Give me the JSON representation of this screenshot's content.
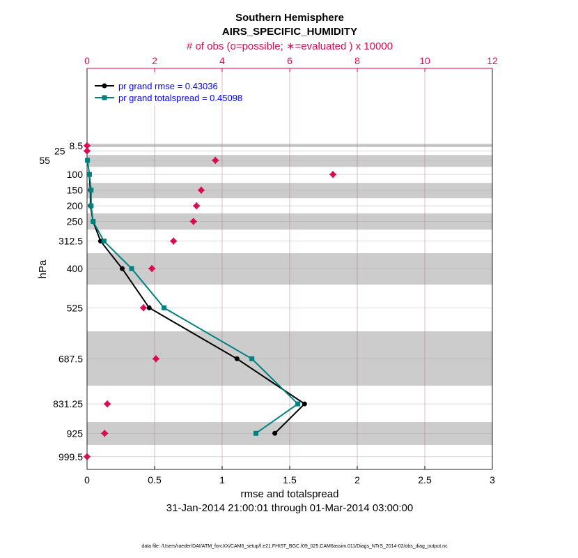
{
  "chart_data": {
    "type": "line",
    "title": "Southern Hemisphere",
    "subtitle": "AIRS_SPECIFIC_HUMIDITY",
    "top_axis_label": "# of obs (o=possible; ∗=evaluated ) x 10000",
    "xlabel": "rmse and totalspread",
    "ylabel": "hPa",
    "date_range": "31-Jan-2014 21:00:01 through 01-Mar-2014 03:00:00",
    "footer": "data file: /Users/raeder/DAI/ATM_forcXX/CAM6_setup/f.e21.FHIST_BGC.f09_025.CAM6assim.011/Diags_NTrS_2014-02/obs_diag_output.nc",
    "xlim": [
      0,
      3
    ],
    "x_ticks": [
      "0",
      "0.5",
      "1",
      "1.5",
      "2",
      "2.5",
      "3"
    ],
    "top_xlim": [
      0,
      12
    ],
    "top_ticks": [
      "0",
      "2",
      "4",
      "6",
      "8",
      "10",
      "12"
    ],
    "ylim": [
      -238,
      1040
    ],
    "y_reversed": true,
    "levels": [
      8.5,
      25,
      55,
      100,
      150,
      200,
      250,
      312.5,
      400,
      525,
      687.5,
      831.25,
      925,
      999.5
    ],
    "level_labels": [
      "8.5",
      "25",
      "55",
      "100",
      "150",
      "200",
      "250",
      "312.5",
      "400",
      "525",
      "687.5",
      "831.25",
      "925",
      "999.5"
    ],
    "shaded_bands_hPa": [
      [
        2,
        13
      ],
      [
        38,
        76
      ],
      [
        127,
        176
      ],
      [
        224,
        276
      ],
      [
        351,
        451
      ],
      [
        600,
        773
      ],
      [
        889,
        962
      ]
    ],
    "grid": true,
    "legend_position": "top-left",
    "series": [
      {
        "name": "pr grand rmse = 0.43036",
        "color": "#000000",
        "levels": [
          100,
          150,
          200,
          250,
          312.5,
          400,
          525,
          687.5,
          831.25,
          925
        ],
        "values": [
          0.016,
          0.025,
          0.025,
          0.045,
          0.1,
          0.26,
          0.46,
          1.11,
          1.61,
          1.39
        ]
      },
      {
        "name": "pr grand totalspread = 0.45098",
        "color": "#008080",
        "levels": [
          55,
          100,
          150,
          200,
          250,
          312.5,
          400,
          525,
          687.5,
          831.25,
          925
        ],
        "values": [
          0.003,
          0.018,
          0.03,
          0.03,
          0.045,
          0.125,
          0.33,
          0.57,
          1.22,
          1.56,
          1.25
        ]
      }
    ],
    "obs_count": {
      "color": "#dc0a50",
      "levels": [
        8.5,
        25,
        55,
        100,
        150,
        200,
        250,
        312.5,
        400,
        525,
        687.5,
        831.25,
        925,
        999.5
      ],
      "values": [
        0,
        0,
        3.8,
        7.28,
        3.38,
        3.24,
        3.15,
        2.56,
        1.92,
        1.67,
        2.04,
        0.6,
        0.52,
        0
      ]
    }
  }
}
